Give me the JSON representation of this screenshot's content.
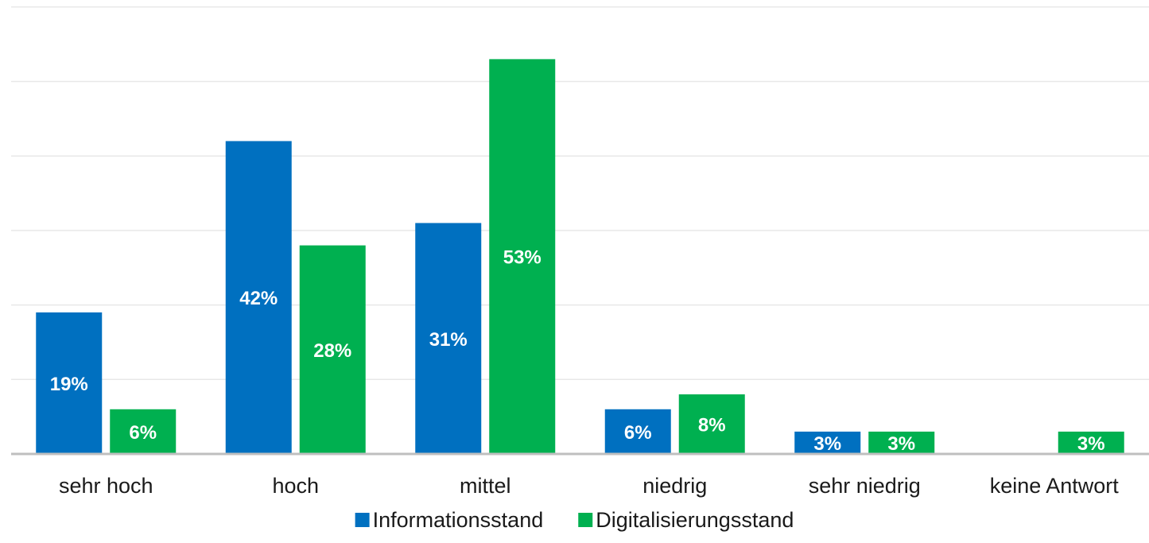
{
  "chart_data": {
    "type": "bar",
    "title": "",
    "xlabel": "",
    "ylabel": "",
    "categories": [
      "sehr hoch",
      "hoch",
      "mittel",
      "niedrig",
      "sehr niedrig",
      "keine Antwort"
    ],
    "series": [
      {
        "name": "Informationsstand",
        "color": "#0070c0",
        "values": [
          19,
          42,
          31,
          6,
          3,
          0
        ],
        "labels": [
          "19%",
          "42%",
          "31%",
          "6%",
          "3%",
          ""
        ]
      },
      {
        "name": "Digitalisierungsstand",
        "color": "#00b050",
        "values": [
          6,
          28,
          53,
          8,
          3,
          3
        ],
        "labels": [
          "6%",
          "28%",
          "53%",
          "8%",
          "3%",
          "3%"
        ]
      }
    ],
    "ylim": [
      0,
      60
    ],
    "grid": true,
    "y_axis_visible": false,
    "legend": "bottom-center",
    "colors": {
      "grid": "#e8e8e8",
      "axis": "#bfbfbf",
      "bar_label": "#ffffff",
      "text": "#1a1a1a"
    }
  }
}
